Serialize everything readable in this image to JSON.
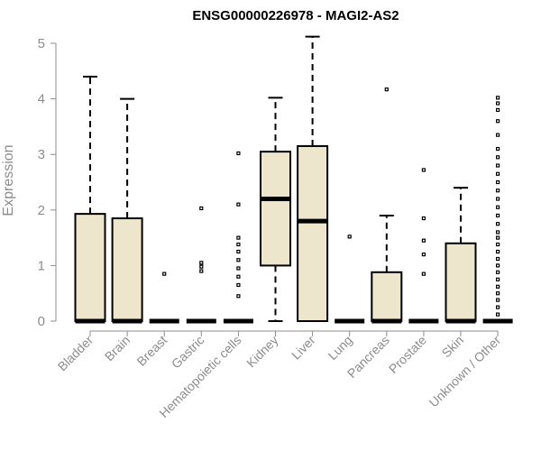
{
  "chart_data": {
    "type": "box",
    "title": "ENSG00000226978 - MAGI2-AS2",
    "ylabel": "Expression",
    "xlabel": "",
    "ylim": [
      0,
      5.2
    ],
    "yticks": [
      0,
      1,
      2,
      3,
      4,
      5
    ],
    "box_fill": "#ede6cd",
    "line_color": "#000000",
    "label_color": "#8c8c8c",
    "categories": [
      "Bladder",
      "Brain",
      "Breast",
      "Gastric",
      "Hematopoietic cells",
      "Kidney",
      "Liver",
      "Lung",
      "Pancreas",
      "Prostate",
      "Skin",
      "Unknown / Other"
    ],
    "boxes": [
      {
        "name": "Bladder",
        "q1": 0,
        "median": 0,
        "q3": 1.93,
        "whisker_low": 0,
        "whisker_high": 4.4,
        "outliers": []
      },
      {
        "name": "Brain",
        "q1": 0,
        "median": 0,
        "q3": 1.85,
        "whisker_low": 0,
        "whisker_high": 4.0,
        "outliers": []
      },
      {
        "name": "Breast",
        "q1": 0,
        "median": 0,
        "q3": 0,
        "whisker_low": 0,
        "whisker_high": 0,
        "outliers": [
          0.85
        ]
      },
      {
        "name": "Gastric",
        "q1": 0,
        "median": 0,
        "q3": 0,
        "whisker_low": 0,
        "whisker_high": 0,
        "outliers": [
          0.9,
          0.98,
          1.05,
          2.03
        ]
      },
      {
        "name": "Hematopoietic cells",
        "q1": 0,
        "median": 0,
        "q3": 0,
        "whisker_low": 0,
        "whisker_high": 0,
        "outliers": [
          0.45,
          0.65,
          0.8,
          0.95,
          1.1,
          1.25,
          1.38,
          1.5,
          2.1,
          3.02
        ]
      },
      {
        "name": "Kidney",
        "q1": 1.0,
        "median": 2.2,
        "q3": 3.05,
        "whisker_low": 0,
        "whisker_high": 4.02,
        "outliers": []
      },
      {
        "name": "Liver",
        "q1": 0,
        "median": 1.8,
        "q3": 3.15,
        "whisker_low": 0,
        "whisker_high": 5.12,
        "outliers": []
      },
      {
        "name": "Lung",
        "q1": 0,
        "median": 0,
        "q3": 0,
        "whisker_low": 0,
        "whisker_high": 0,
        "outliers": [
          1.52
        ]
      },
      {
        "name": "Pancreas",
        "q1": 0,
        "median": 0,
        "q3": 0.88,
        "whisker_low": 0,
        "whisker_high": 1.9,
        "outliers": [
          4.17
        ]
      },
      {
        "name": "Prostate",
        "q1": 0,
        "median": 0,
        "q3": 0,
        "whisker_low": 0,
        "whisker_high": 0,
        "outliers": [
          0.85,
          1.2,
          1.45,
          1.85,
          2.72
        ]
      },
      {
        "name": "Skin",
        "q1": 0,
        "median": 0,
        "q3": 1.4,
        "whisker_low": 0,
        "whisker_high": 2.4,
        "outliers": []
      },
      {
        "name": "Unknown / Other",
        "q1": 0,
        "median": 0,
        "q3": 0,
        "whisker_low": 0,
        "whisker_high": 0,
        "outliers": [
          0.12,
          0.25,
          0.38,
          0.5,
          0.62,
          0.75,
          0.88,
          1.0,
          1.12,
          1.25,
          1.38,
          1.5,
          1.6,
          1.75,
          1.9,
          2.05,
          2.2,
          2.35,
          2.5,
          2.65,
          2.8,
          2.95,
          3.1,
          3.35,
          3.6,
          3.8,
          3.92,
          4.02
        ]
      }
    ]
  }
}
